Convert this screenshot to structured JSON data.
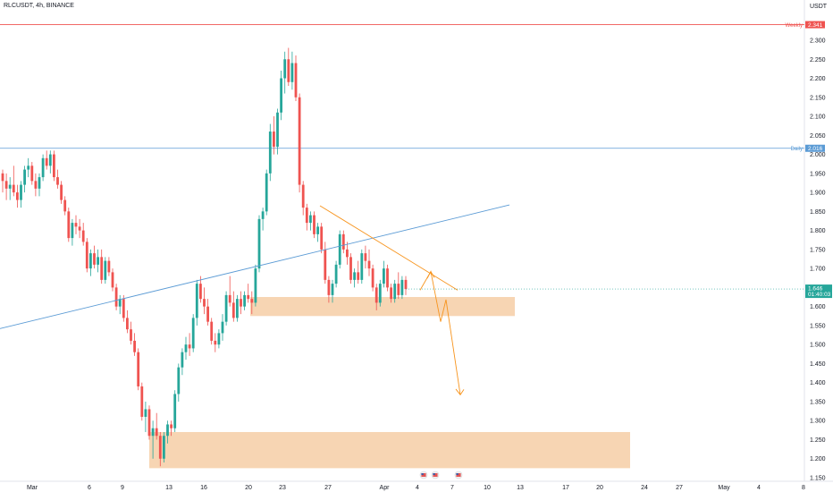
{
  "chart_data": {
    "type": "candlestick",
    "title": "RLCUSDT, 4h, BINANCE",
    "currency": "USDT",
    "ylim": [
      1.1,
      2.4
    ],
    "yticks": [
      "1.150",
      "1.200",
      "1.250",
      "1.300",
      "1.350",
      "1.400",
      "1.450",
      "1.500",
      "1.550",
      "1.600",
      "1.650",
      "1.700",
      "1.750",
      "1.800",
      "1.850",
      "1.900",
      "1.950",
      "2.000",
      "2.050",
      "2.100",
      "2.150",
      "2.200",
      "2.250",
      "2.300"
    ],
    "xticks": [
      "Mar",
      "6",
      "9",
      "13",
      "16",
      "20",
      "23",
      "27",
      "Apr",
      "4",
      "7",
      "10",
      "13",
      "17",
      "20",
      "24",
      "27",
      "May",
      "4",
      "8"
    ],
    "current_price": "1.646",
    "countdown": "01:40:03",
    "colors": {
      "up": "#26a69a",
      "down": "#ef5350",
      "zone": "#f7d5b3",
      "trend": "#5b9bd5",
      "orange": "#f7941d",
      "weekly": "#ef5350",
      "daily": "#5b9bd5"
    },
    "levels": [
      {
        "label": "Weekly",
        "value": 2.341,
        "price_label": "2.341"
      },
      {
        "label": "Daily",
        "value": 2.016,
        "price_label": "2.016"
      }
    ],
    "candles": [
      [
        1.95,
        1.96,
        1.9,
        1.93
      ],
      [
        1.93,
        1.95,
        1.88,
        1.91
      ],
      [
        1.91,
        1.94,
        1.88,
        1.92
      ],
      [
        1.92,
        1.97,
        1.89,
        1.9
      ],
      [
        1.9,
        1.92,
        1.86,
        1.88
      ],
      [
        1.88,
        1.93,
        1.86,
        1.92
      ],
      [
        1.92,
        1.97,
        1.9,
        1.96
      ],
      [
        1.96,
        1.99,
        1.94,
        1.97
      ],
      [
        1.97,
        1.98,
        1.92,
        1.93
      ],
      [
        1.93,
        1.95,
        1.89,
        1.91
      ],
      [
        1.91,
        1.95,
        1.89,
        1.94
      ],
      [
        1.94,
        2.0,
        1.93,
        1.99
      ],
      [
        1.99,
        2.01,
        1.96,
        1.97
      ],
      [
        1.97,
        2.01,
        1.95,
        2.0
      ],
      [
        2.0,
        2.01,
        1.93,
        1.94
      ],
      [
        1.94,
        1.96,
        1.91,
        1.92
      ],
      [
        1.92,
        1.93,
        1.87,
        1.88
      ],
      [
        1.88,
        1.89,
        1.84,
        1.85
      ],
      [
        1.85,
        1.86,
        1.77,
        1.78
      ],
      [
        1.78,
        1.83,
        1.76,
        1.82
      ],
      [
        1.82,
        1.84,
        1.79,
        1.81
      ],
      [
        1.81,
        1.83,
        1.78,
        1.8
      ],
      [
        1.8,
        1.82,
        1.76,
        1.77
      ],
      [
        1.77,
        1.78,
        1.69,
        1.7
      ],
      [
        1.7,
        1.75,
        1.68,
        1.74
      ],
      [
        1.74,
        1.76,
        1.7,
        1.71
      ],
      [
        1.71,
        1.75,
        1.69,
        1.73
      ],
      [
        1.73,
        1.75,
        1.66,
        1.67
      ],
      [
        1.67,
        1.73,
        1.66,
        1.72
      ],
      [
        1.72,
        1.73,
        1.68,
        1.69
      ],
      [
        1.69,
        1.7,
        1.64,
        1.65
      ],
      [
        1.65,
        1.66,
        1.59,
        1.6
      ],
      [
        1.6,
        1.63,
        1.58,
        1.62
      ],
      [
        1.62,
        1.63,
        1.56,
        1.57
      ],
      [
        1.57,
        1.59,
        1.53,
        1.54
      ],
      [
        1.54,
        1.56,
        1.5,
        1.51
      ],
      [
        1.51,
        1.53,
        1.47,
        1.48
      ],
      [
        1.48,
        1.49,
        1.38,
        1.39
      ],
      [
        1.39,
        1.4,
        1.3,
        1.31
      ],
      [
        1.31,
        1.35,
        1.27,
        1.33
      ],
      [
        1.33,
        1.34,
        1.25,
        1.26
      ],
      [
        1.26,
        1.3,
        1.2,
        1.28
      ],
      [
        1.28,
        1.32,
        1.25,
        1.26
      ],
      [
        1.26,
        1.27,
        1.18,
        1.2
      ],
      [
        1.2,
        1.27,
        1.19,
        1.26
      ],
      [
        1.26,
        1.3,
        1.24,
        1.29
      ],
      [
        1.29,
        1.3,
        1.26,
        1.28
      ],
      [
        1.28,
        1.38,
        1.27,
        1.37
      ],
      [
        1.37,
        1.45,
        1.35,
        1.44
      ],
      [
        1.44,
        1.49,
        1.42,
        1.48
      ],
      [
        1.48,
        1.52,
        1.46,
        1.5
      ],
      [
        1.5,
        1.53,
        1.47,
        1.49
      ],
      [
        1.49,
        1.58,
        1.48,
        1.57
      ],
      [
        1.57,
        1.67,
        1.55,
        1.66
      ],
      [
        1.66,
        1.68,
        1.61,
        1.62
      ],
      [
        1.62,
        1.65,
        1.58,
        1.6
      ],
      [
        1.6,
        1.62,
        1.55,
        1.56
      ],
      [
        1.56,
        1.57,
        1.5,
        1.51
      ],
      [
        1.51,
        1.53,
        1.48,
        1.5
      ],
      [
        1.5,
        1.54,
        1.49,
        1.53
      ],
      [
        1.53,
        1.58,
        1.51,
        1.56
      ],
      [
        1.56,
        1.64,
        1.55,
        1.63
      ],
      [
        1.63,
        1.68,
        1.6,
        1.61
      ],
      [
        1.61,
        1.64,
        1.56,
        1.57
      ],
      [
        1.57,
        1.63,
        1.56,
        1.62
      ],
      [
        1.62,
        1.64,
        1.58,
        1.6
      ],
      [
        1.6,
        1.64,
        1.59,
        1.63
      ],
      [
        1.63,
        1.66,
        1.61,
        1.62
      ],
      [
        1.62,
        1.64,
        1.58,
        1.61
      ],
      [
        1.61,
        1.71,
        1.6,
        1.7
      ],
      [
        1.7,
        1.84,
        1.69,
        1.83
      ],
      [
        1.83,
        1.86,
        1.8,
        1.85
      ],
      [
        1.85,
        1.96,
        1.84,
        1.95
      ],
      [
        1.95,
        2.08,
        1.93,
        2.06
      ],
      [
        2.06,
        2.1,
        2.0,
        2.02
      ],
      [
        2.02,
        2.12,
        2.0,
        2.11
      ],
      [
        2.11,
        2.22,
        2.09,
        2.2
      ],
      [
        2.2,
        2.27,
        2.16,
        2.25
      ],
      [
        2.25,
        2.28,
        2.18,
        2.19
      ],
      [
        2.19,
        2.27,
        2.17,
        2.24
      ],
      [
        2.24,
        2.26,
        2.14,
        2.15
      ],
      [
        2.15,
        2.16,
        1.9,
        1.92
      ],
      [
        1.92,
        1.93,
        1.84,
        1.86
      ],
      [
        1.86,
        1.87,
        1.8,
        1.82
      ],
      [
        1.82,
        1.85,
        1.8,
        1.84
      ],
      [
        1.84,
        1.85,
        1.78,
        1.79
      ],
      [
        1.79,
        1.82,
        1.77,
        1.81
      ],
      [
        1.81,
        1.82,
        1.74,
        1.75
      ],
      [
        1.75,
        1.77,
        1.66,
        1.67
      ],
      [
        1.67,
        1.68,
        1.61,
        1.63
      ],
      [
        1.63,
        1.67,
        1.61,
        1.66
      ],
      [
        1.66,
        1.72,
        1.65,
        1.71
      ],
      [
        1.71,
        1.8,
        1.7,
        1.79
      ],
      [
        1.79,
        1.8,
        1.74,
        1.75
      ],
      [
        1.75,
        1.77,
        1.71,
        1.73
      ],
      [
        1.73,
        1.74,
        1.66,
        1.67
      ],
      [
        1.67,
        1.7,
        1.65,
        1.69
      ],
      [
        1.69,
        1.72,
        1.66,
        1.67
      ],
      [
        1.67,
        1.75,
        1.66,
        1.74
      ],
      [
        1.74,
        1.76,
        1.7,
        1.72
      ],
      [
        1.72,
        1.75,
        1.68,
        1.7
      ],
      [
        1.7,
        1.71,
        1.64,
        1.65
      ],
      [
        1.65,
        1.66,
        1.59,
        1.61
      ],
      [
        1.61,
        1.67,
        1.6,
        1.66
      ],
      [
        1.66,
        1.72,
        1.65,
        1.7
      ],
      [
        1.7,
        1.71,
        1.64,
        1.65
      ],
      [
        1.65,
        1.66,
        1.61,
        1.62
      ],
      [
        1.62,
        1.67,
        1.61,
        1.66
      ],
      [
        1.66,
        1.69,
        1.62,
        1.63
      ],
      [
        1.63,
        1.68,
        1.62,
        1.67
      ],
      [
        1.67,
        1.68,
        1.63,
        1.646
      ]
    ],
    "zones": [
      {
        "from": 1.625,
        "to": 1.575
      },
      {
        "from": 1.27,
        "to": 1.175
      }
    ],
    "annotations": {
      "xlabel_flag_count": 3
    }
  }
}
